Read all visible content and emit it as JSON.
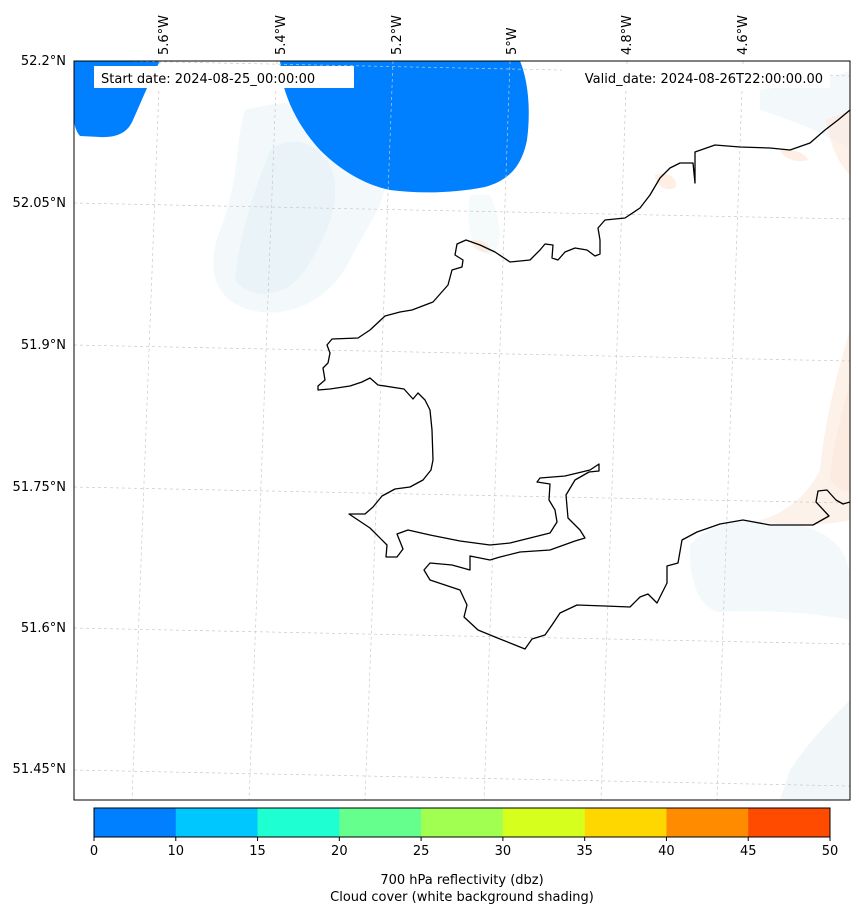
{
  "header": {
    "start_date": "Start date: 2024-08-25_00:00:00",
    "valid_date": "Valid_date: 2024-08-26T22:00:00.00"
  },
  "map": {
    "lon_labels": [
      "5.6°W",
      "5.4°W",
      "5.2°W",
      "5°W",
      "4.8°W",
      "4.6°W"
    ],
    "lat_labels": [
      "52.2°N",
      "52.05°N",
      "51.9°N",
      "51.75°N",
      "51.6°N",
      "51.45°N"
    ],
    "reflectivity_color": "#0080ff",
    "coastline_color": "#000000"
  },
  "colorbar": {
    "ticks": [
      "0",
      "10",
      "15",
      "20",
      "25",
      "30",
      "35",
      "40",
      "45",
      "50"
    ],
    "colors": [
      "#0080ff",
      "#00c8ff",
      "#1effd2",
      "#64ff8c",
      "#a0ff50",
      "#d7ff1e",
      "#ffd700",
      "#ff8c00",
      "#ff4b00"
    ],
    "label_line1": "700 hPa reflectivity (dbz)",
    "label_line2": "Cloud cover (white background shading)"
  }
}
